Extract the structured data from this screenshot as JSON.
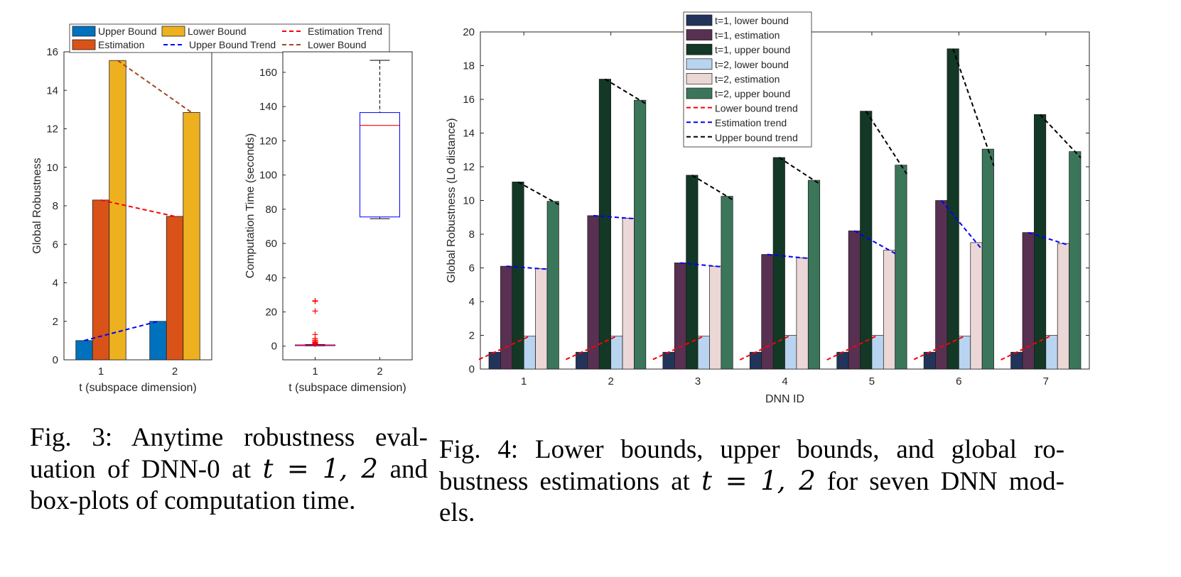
{
  "chart_data": [
    {
      "type": "bar",
      "ylabel": "Global Robustness",
      "xlabel": "t (subspace dimension)",
      "categories": [
        "1",
        "2"
      ],
      "ylim": [
        0,
        16
      ],
      "yticks": [
        "0",
        "2",
        "4",
        "6",
        "8",
        "10",
        "12",
        "14",
        "16"
      ],
      "series": [
        {
          "name": "Upper Bound",
          "color": "#0072BD",
          "values": [
            1,
            2
          ]
        },
        {
          "name": "Estimation",
          "color": "#D95319",
          "values": [
            8.3,
            7.45
          ]
        },
        {
          "name": "Lower Bound",
          "color": "#EDB120",
          "values": [
            15.55,
            12.85
          ]
        }
      ],
      "trends": [
        {
          "name": "Estimation Trend",
          "color": "#ff0000",
          "series_index": 1,
          "from": 8.3,
          "to": 7.45
        },
        {
          "name": "Upper Bound Trend",
          "color": "#0000ff",
          "series_index": 0,
          "from": 1,
          "to": 2
        },
        {
          "name": "Lower Bound",
          "color": "#A2481E",
          "series_index": 2,
          "from": 15.55,
          "to": 12.85
        }
      ],
      "legend": "top"
    },
    {
      "type": "box",
      "ylabel": "Computation Time (seconds)",
      "xlabel": "t (subspace dimension)",
      "categories": [
        "1",
        "2"
      ],
      "ylim": [
        -8,
        172
      ],
      "yticks": [
        "0",
        "20",
        "40",
        "60",
        "80",
        "100",
        "120",
        "140",
        "160"
      ],
      "boxes": [
        {
          "category": "1",
          "whisker_low": 0.2,
          "q1": 0.3,
          "median": 0.5,
          "q3": 0.7,
          "whisker_high": 0.9,
          "outliers": [
            26.5,
            26.2,
            20.5,
            6.8,
            4.5,
            3.5,
            2.8,
            2.2,
            1.8,
            1.5,
            1.2
          ]
        },
        {
          "category": "2",
          "whisker_low": 74.5,
          "q1": 75.5,
          "median": 129,
          "q3": 136.5,
          "whisker_high": 167,
          "outliers": []
        }
      ],
      "box_color": "#0000ff",
      "median_color": "#ff0000"
    },
    {
      "type": "bar",
      "ylabel": "Global Robustness (L0 distance)",
      "xlabel": "DNN ID",
      "categories": [
        "1",
        "2",
        "3",
        "4",
        "5",
        "6",
        "7"
      ],
      "ylim": [
        0,
        20
      ],
      "yticks": [
        "0",
        "2",
        "4",
        "6",
        "8",
        "10",
        "12",
        "14",
        "16",
        "18",
        "20"
      ],
      "series": [
        {
          "name": "t=1, lower bound",
          "color": "#22345A",
          "values": [
            1,
            1,
            1,
            1,
            1,
            1,
            1
          ]
        },
        {
          "name": "t=1, estimation",
          "color": "#583052",
          "values": [
            6.1,
            9.1,
            6.3,
            6.8,
            8.2,
            10.0,
            8.1
          ]
        },
        {
          "name": "t=1, upper bound",
          "color": "#133826",
          "values": [
            11.1,
            17.2,
            11.5,
            12.55,
            15.3,
            19.0,
            15.1
          ]
        },
        {
          "name": "t=2, lower bound",
          "color": "#B9D4F0",
          "values": [
            1.95,
            1.95,
            1.95,
            2.0,
            2.0,
            1.95,
            2.0
          ]
        },
        {
          "name": "t=2, estimation",
          "color": "#EBD7D5",
          "values": [
            5.95,
            8.95,
            6.1,
            6.6,
            7.05,
            7.5,
            7.45
          ]
        },
        {
          "name": "t=2, upper bound",
          "color": "#3B765A",
          "values": [
            9.95,
            15.95,
            10.25,
            11.2,
            12.1,
            13.05,
            12.9
          ]
        }
      ],
      "trends": [
        {
          "name": "Lower bound trend",
          "color": "#ff0000"
        },
        {
          "name": "Estimation trend",
          "color": "#0000ff"
        },
        {
          "name": "Upper bound trend",
          "color": "#000000"
        }
      ],
      "legend": "top-left inside"
    }
  ],
  "captions": {
    "fig3_label": "Fig. 3:",
    "fig3_text_a": "Anytime robustness eval-",
    "fig3_text_b": "uation of DNN-0 at ",
    "fig3_math": "t = 1, 2",
    "fig3_text_c": " and",
    "fig3_text_d": "box-plots of computation time.",
    "fig4_label": "Fig. 4:",
    "fig4_text_a": "Lower bounds, upper bounds, and global ro-",
    "fig4_text_b": "bustness estimations at ",
    "fig4_math": "t = 1, 2",
    "fig4_text_c": " for seven DNN mod-",
    "fig4_text_d": "els."
  }
}
